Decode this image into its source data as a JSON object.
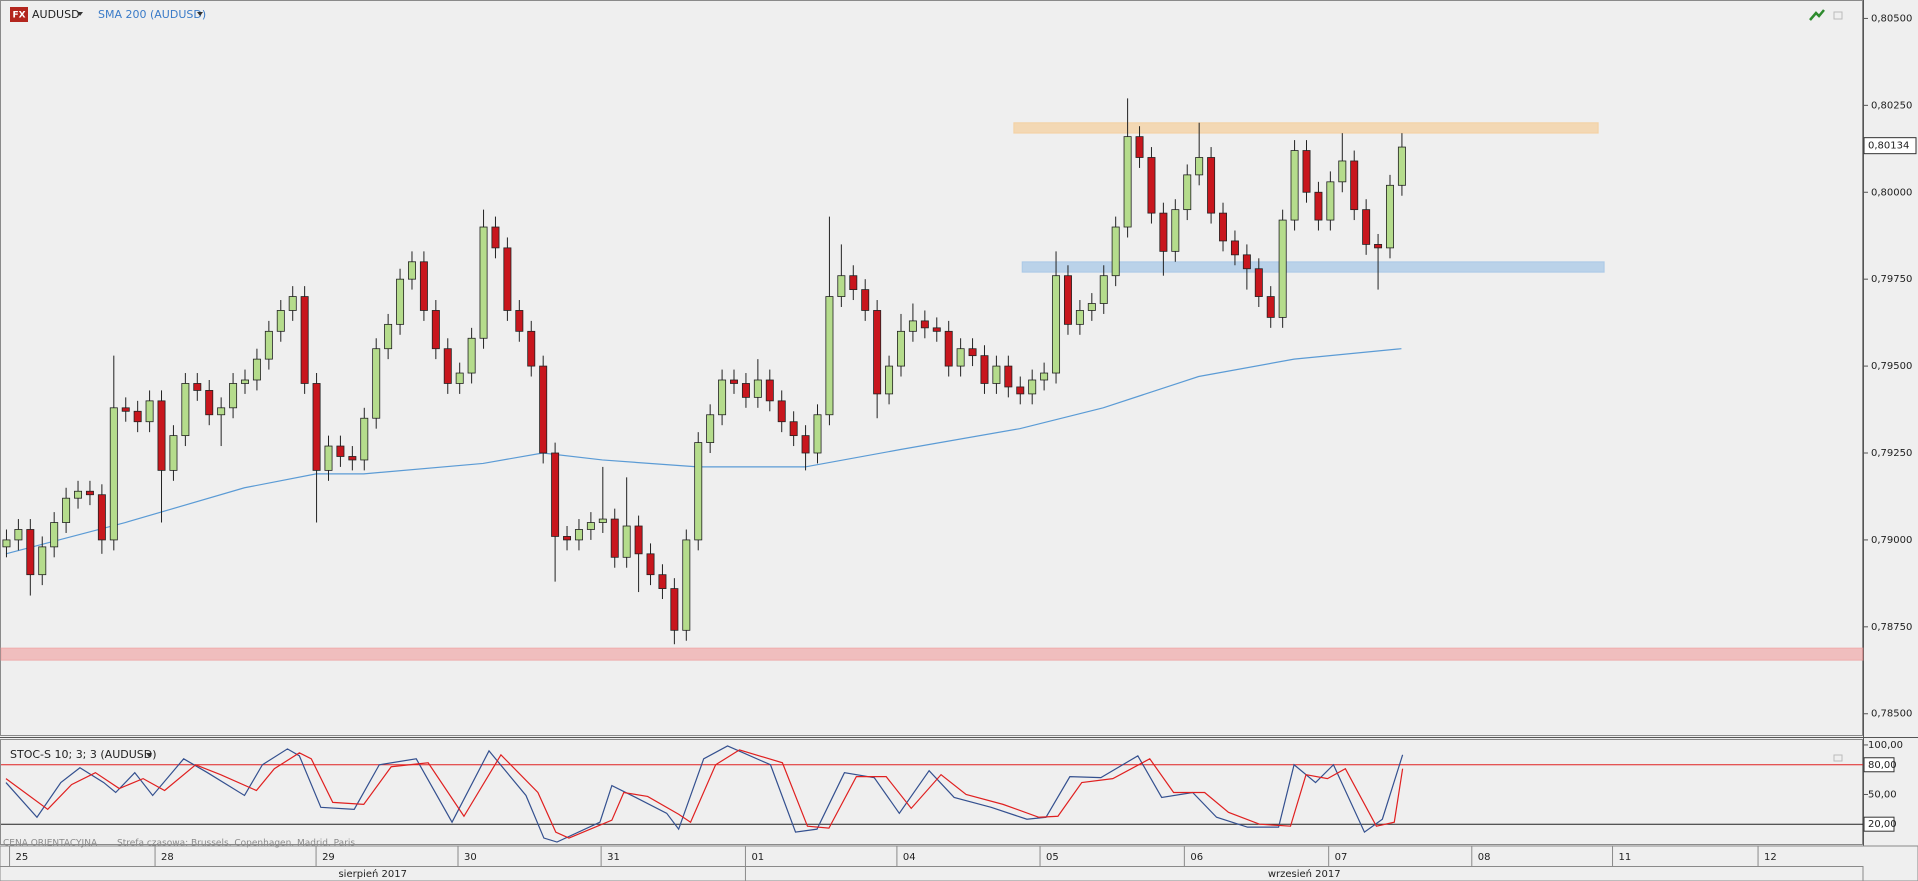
{
  "header": {
    "badge": "FX",
    "symbol": "AUDUSD",
    "indicator": "SMA 200 (AUDUSD)"
  },
  "chart_data": [
    {
      "type": "candlestick",
      "xlim": [
        -0.5,
        155.7
      ],
      "ylim": [
        0.78436,
        0.80553
      ],
      "yticks": [
        {
          "value": 0.805,
          "label": "0,80500"
        },
        {
          "value": 0.8025,
          "label": "0,80250"
        },
        {
          "value": 0.8,
          "label": "0,80000"
        },
        {
          "value": 0.7975,
          "label": "0,79750"
        },
        {
          "value": 0.795,
          "label": "0,79500"
        },
        {
          "value": 0.7925,
          "label": "0,79250"
        },
        {
          "value": 0.79,
          "label": "0,79000"
        },
        {
          "value": 0.7875,
          "label": "0,78750"
        },
        {
          "value": 0.785,
          "label": "0,78500"
        }
      ],
      "xticks": [
        {
          "value": 0.3,
          "label": "25"
        },
        {
          "value": 12.5,
          "label": "28"
        },
        {
          "value": 26,
          "label": "29"
        },
        {
          "value": 37.9,
          "label": "30"
        },
        {
          "value": 49.9,
          "label": "31"
        },
        {
          "value": 62,
          "label": "01"
        },
        {
          "value": 74.7,
          "label": "04"
        },
        {
          "value": 86.7,
          "label": "05"
        },
        {
          "value": 98.8,
          "label": "06"
        },
        {
          "value": 110.9,
          "label": "07"
        },
        {
          "value": 122.9,
          "label": "08"
        },
        {
          "value": 134.7,
          "label": "11"
        },
        {
          "value": 146.9,
          "label": "12"
        }
      ],
      "months": [
        {
          "label": "sierpień 2017",
          "start": -0.5,
          "end": 62
        },
        {
          "label": "wrzesień 2017",
          "start": 62,
          "end": 155.7
        }
      ],
      "up_color": "#b5dc8c",
      "down_color": "#c8161d",
      "candles": [
        [
          0.7898,
          0.7903,
          0.7895,
          0.79
        ],
        [
          0.79,
          0.7906,
          0.7897,
          0.7903
        ],
        [
          0.7903,
          0.7906,
          0.7884,
          0.789
        ],
        [
          0.789,
          0.7901,
          0.7887,
          0.7898
        ],
        [
          0.7898,
          0.7908,
          0.7895,
          0.7905
        ],
        [
          0.7905,
          0.7915,
          0.7902,
          0.7912
        ],
        [
          0.7912,
          0.7917,
          0.7909,
          0.7914
        ],
        [
          0.7914,
          0.7917,
          0.791,
          0.7913
        ],
        [
          0.7913,
          0.7916,
          0.7896,
          0.79
        ],
        [
          0.79,
          0.7953,
          0.7897,
          0.7938
        ],
        [
          0.7938,
          0.7941,
          0.7934,
          0.7937
        ],
        [
          0.7937,
          0.794,
          0.7931,
          0.7934
        ],
        [
          0.7934,
          0.7943,
          0.7931,
          0.794
        ],
        [
          0.794,
          0.7943,
          0.7905,
          0.792
        ],
        [
          0.792,
          0.7933,
          0.7917,
          0.793
        ],
        [
          0.793,
          0.7948,
          0.7927,
          0.7945
        ],
        [
          0.7945,
          0.7948,
          0.794,
          0.7943
        ],
        [
          0.7943,
          0.7946,
          0.7933,
          0.7936
        ],
        [
          0.7936,
          0.7941,
          0.7927,
          0.7938
        ],
        [
          0.7938,
          0.7948,
          0.7935,
          0.7945
        ],
        [
          0.7945,
          0.7949,
          0.7942,
          0.7946
        ],
        [
          0.7946,
          0.7955,
          0.7943,
          0.7952
        ],
        [
          0.7952,
          0.7963,
          0.7949,
          0.796
        ],
        [
          0.796,
          0.7969,
          0.7957,
          0.7966
        ],
        [
          0.7966,
          0.7973,
          0.7963,
          0.797
        ],
        [
          0.797,
          0.7973,
          0.7942,
          0.7945
        ],
        [
          0.7945,
          0.7948,
          0.7905,
          0.792
        ],
        [
          0.792,
          0.793,
          0.7917,
          0.7927
        ],
        [
          0.7927,
          0.793,
          0.7921,
          0.7924
        ],
        [
          0.7924,
          0.7927,
          0.792,
          0.7923
        ],
        [
          0.7923,
          0.7938,
          0.792,
          0.7935
        ],
        [
          0.7935,
          0.7958,
          0.7932,
          0.7955
        ],
        [
          0.7955,
          0.7965,
          0.7952,
          0.7962
        ],
        [
          0.7962,
          0.7978,
          0.7959,
          0.7975
        ],
        [
          0.7975,
          0.7983,
          0.7972,
          0.798
        ],
        [
          0.798,
          0.7983,
          0.7963,
          0.7966
        ],
        [
          0.7966,
          0.7969,
          0.7952,
          0.7955
        ],
        [
          0.7955,
          0.7958,
          0.7942,
          0.7945
        ],
        [
          0.7945,
          0.7951,
          0.7942,
          0.7948
        ],
        [
          0.7948,
          0.7961,
          0.7945,
          0.7958
        ],
        [
          0.7958,
          0.7995,
          0.7955,
          0.799
        ],
        [
          0.799,
          0.7993,
          0.7981,
          0.7984
        ],
        [
          0.7984,
          0.7987,
          0.7963,
          0.7966
        ],
        [
          0.7966,
          0.7969,
          0.7957,
          0.796
        ],
        [
          0.796,
          0.7963,
          0.7947,
          0.795
        ],
        [
          0.795,
          0.7953,
          0.7922,
          0.7925
        ],
        [
          0.7925,
          0.7928,
          0.7888,
          0.7901
        ],
        [
          0.7901,
          0.7904,
          0.7897,
          0.79
        ],
        [
          0.79,
          0.7906,
          0.7897,
          0.7903
        ],
        [
          0.7903,
          0.7908,
          0.79,
          0.7905
        ],
        [
          0.7905,
          0.7921,
          0.7902,
          0.7906
        ],
        [
          0.7906,
          0.7909,
          0.7892,
          0.7895
        ],
        [
          0.7895,
          0.7918,
          0.7892,
          0.7904
        ],
        [
          0.7904,
          0.7907,
          0.7885,
          0.7896
        ],
        [
          0.7896,
          0.7899,
          0.7887,
          0.789
        ],
        [
          0.789,
          0.7893,
          0.7883,
          0.7886
        ],
        [
          0.7886,
          0.7889,
          0.787,
          0.7874
        ],
        [
          0.7874,
          0.7903,
          0.7871,
          0.79
        ],
        [
          0.79,
          0.7931,
          0.7897,
          0.7928
        ],
        [
          0.7928,
          0.7939,
          0.7925,
          0.7936
        ],
        [
          0.7936,
          0.7949,
          0.7933,
          0.7946
        ],
        [
          0.7946,
          0.7949,
          0.7942,
          0.7945
        ],
        [
          0.7945,
          0.7948,
          0.7938,
          0.7941
        ],
        [
          0.7941,
          0.7952,
          0.7938,
          0.7946
        ],
        [
          0.7946,
          0.7949,
          0.7937,
          0.794
        ],
        [
          0.794,
          0.7943,
          0.7931,
          0.7934
        ],
        [
          0.7934,
          0.7937,
          0.7927,
          0.793
        ],
        [
          0.793,
          0.7933,
          0.792,
          0.7925
        ],
        [
          0.7925,
          0.7939,
          0.7922,
          0.7936
        ],
        [
          0.7936,
          0.7993,
          0.7933,
          0.797
        ],
        [
          0.797,
          0.7985,
          0.7967,
          0.7976
        ],
        [
          0.7976,
          0.7979,
          0.7969,
          0.7972
        ],
        [
          0.7972,
          0.7975,
          0.7963,
          0.7966
        ],
        [
          0.7966,
          0.7969,
          0.7935,
          0.7942
        ],
        [
          0.7942,
          0.7953,
          0.7939,
          0.795
        ],
        [
          0.795,
          0.7965,
          0.7947,
          0.796
        ],
        [
          0.796,
          0.7968,
          0.7957,
          0.7963
        ],
        [
          0.7963,
          0.7966,
          0.7958,
          0.7961
        ],
        [
          0.7961,
          0.7964,
          0.7957,
          0.796
        ],
        [
          0.796,
          0.7963,
          0.7947,
          0.795
        ],
        [
          0.795,
          0.7958,
          0.7947,
          0.7955
        ],
        [
          0.7955,
          0.7958,
          0.795,
          0.7953
        ],
        [
          0.7953,
          0.7956,
          0.7942,
          0.7945
        ],
        [
          0.7945,
          0.7953,
          0.7942,
          0.795
        ],
        [
          0.795,
          0.7953,
          0.7941,
          0.7944
        ],
        [
          0.7944,
          0.7947,
          0.7939,
          0.7942
        ],
        [
          0.7942,
          0.7949,
          0.7939,
          0.7946
        ],
        [
          0.7946,
          0.7951,
          0.7943,
          0.7948
        ],
        [
          0.7948,
          0.7983,
          0.7945,
          0.7976
        ],
        [
          0.7976,
          0.7979,
          0.7959,
          0.7962
        ],
        [
          0.7962,
          0.7969,
          0.7959,
          0.7966
        ],
        [
          0.7966,
          0.7971,
          0.7963,
          0.7968
        ],
        [
          0.7968,
          0.7979,
          0.7965,
          0.7976
        ],
        [
          0.7976,
          0.7993,
          0.7973,
          0.799
        ],
        [
          0.799,
          0.8027,
          0.7987,
          0.8016
        ],
        [
          0.8016,
          0.8019,
          0.8007,
          0.801
        ],
        [
          0.801,
          0.8013,
          0.7991,
          0.7994
        ],
        [
          0.7994,
          0.7997,
          0.7976,
          0.7983
        ],
        [
          0.7983,
          0.7998,
          0.798,
          0.7995
        ],
        [
          0.7995,
          0.8008,
          0.7992,
          0.8005
        ],
        [
          0.8005,
          0.802,
          0.8002,
          0.801
        ],
        [
          0.801,
          0.8013,
          0.7991,
          0.7994
        ],
        [
          0.7994,
          0.7997,
          0.7983,
          0.7986
        ],
        [
          0.7986,
          0.7989,
          0.7979,
          0.7982
        ],
        [
          0.7982,
          0.7985,
          0.7972,
          0.7978
        ],
        [
          0.7978,
          0.7981,
          0.7967,
          0.797
        ],
        [
          0.797,
          0.7973,
          0.7961,
          0.7964
        ],
        [
          0.7964,
          0.7995,
          0.7961,
          0.7992
        ],
        [
          0.7992,
          0.8015,
          0.7989,
          0.8012
        ],
        [
          0.8012,
          0.8015,
          0.7997,
          0.8
        ],
        [
          0.8,
          0.8003,
          0.7989,
          0.7992
        ],
        [
          0.7992,
          0.8006,
          0.7989,
          0.8003
        ],
        [
          0.8003,
          0.8017,
          0.8,
          0.8009
        ],
        [
          0.8009,
          0.8012,
          0.7992,
          0.7995
        ],
        [
          0.7995,
          0.7998,
          0.7982,
          0.7985
        ],
        [
          0.7985,
          0.7988,
          0.7972,
          0.7984
        ],
        [
          0.7984,
          0.8005,
          0.7981,
          0.8002
        ],
        [
          0.8002,
          0.8017,
          0.7999,
          0.8013
        ]
      ],
      "sma": {
        "color": "#5b9bd5",
        "x": [
          0,
          10,
          20,
          26,
          30,
          40,
          45,
          50,
          58,
          67,
          75,
          85,
          92,
          100,
          108,
          117
        ],
        "values": [
          0.7896,
          0.7905,
          0.7915,
          0.7919,
          0.7919,
          0.7922,
          0.7925,
          0.7923,
          0.7921,
          0.7921,
          0.7926,
          0.7932,
          0.7938,
          0.7947,
          0.7952,
          0.7955
        ]
      },
      "zones": [
        {
          "from": 0.8017,
          "to": 0.802,
          "x": [
            84.5,
            133.5
          ],
          "color": "rgba(245,200,140,0.6)"
        },
        {
          "from": 0.7977,
          "to": 0.798,
          "x": [
            85.2,
            134
          ],
          "color": "rgba(150,190,228,0.6)"
        },
        {
          "from": 0.78654,
          "to": 0.78689,
          "color": "rgba(240,150,150,0.55)"
        }
      ],
      "last_price": {
        "value": 0.80134,
        "label": "0,80134"
      }
    },
    {
      "type": "line",
      "title": "STOC-S 10; 3; 3 (AUDUSD)",
      "ylim": [
        0,
        106
      ],
      "yticks": [
        {
          "value": 100,
          "label": "100,00"
        },
        {
          "value": 80,
          "label": "80,00"
        },
        {
          "value": 50,
          "label": "50,00"
        },
        {
          "value": 20,
          "label": "20,00"
        }
      ],
      "levels": [
        {
          "value": 80,
          "color": "#e02020"
        },
        {
          "value": 20,
          "color": "#222222"
        }
      ],
      "series": [
        {
          "color": "#34508f",
          "x": [
            0,
            2.6,
            4.6,
            6.2,
            8.2,
            9.2,
            10.8,
            12.3,
            14.9,
            16.9,
            20,
            21.5,
            23.6,
            24.6,
            26.4,
            29.2,
            31.3,
            34.4,
            37.4,
            40.5,
            43.6,
            45.1,
            46.2,
            49.8,
            50.8,
            52.8,
            55.4,
            56.4,
            58.5,
            60.5,
            64.1,
            66.2,
            68,
            70.3,
            72.8,
            74.9,
            77.4,
            79.5,
            82.6,
            85.6,
            87.2,
            89.2,
            91.8,
            94.9,
            96.9,
            99.5,
            101.5,
            104.1,
            106.7,
            108,
            109.8,
            111.3,
            113.9,
            115.4,
            117.1
          ],
          "values": [
            62,
            27,
            62,
            77,
            62,
            52,
            72,
            49,
            86,
            72,
            49,
            80,
            96,
            89,
            37,
            35,
            80,
            86,
            22,
            94,
            49,
            6,
            2,
            22,
            59,
            47,
            31,
            15,
            86,
            99,
            80,
            12,
            15,
            72,
            67,
            31,
            74,
            47,
            37,
            25,
            27,
            68,
            67,
            89,
            47,
            52,
            27,
            17,
            17,
            80,
            62,
            80,
            12,
            25,
            90
          ]
        },
        {
          "color": "#e02020",
          "x": [
            0,
            3.5,
            5.5,
            7.5,
            9.5,
            11.5,
            13.3,
            15.9,
            18,
            21,
            22.5,
            24.6,
            25.6,
            27.4,
            30,
            32.3,
            35.4,
            38.4,
            41.5,
            44.6,
            46.1,
            47.2,
            50.8,
            51.8,
            53.8,
            56.4,
            57.4,
            59.5,
            61.5,
            65.1,
            67.2,
            69,
            71.3,
            73.8,
            75.9,
            78.4,
            80.5,
            83.6,
            86.6,
            88.2,
            90.2,
            92.8,
            95.9,
            97.9,
            100.5,
            102.5,
            105.1,
            107.7,
            109,
            110.8,
            112.3,
            114.9,
            116.4,
            117.1
          ],
          "values": [
            66,
            35,
            60,
            72,
            56,
            66,
            54,
            80,
            70,
            54,
            76,
            92,
            86,
            42,
            40,
            78,
            82,
            28,
            90,
            52,
            12,
            6,
            24,
            52,
            48,
            30,
            22,
            80,
            95,
            82,
            18,
            16,
            68,
            68,
            36,
            70,
            50,
            40,
            27,
            28,
            62,
            66,
            86,
            52,
            52,
            32,
            20,
            18,
            70,
            66,
            76,
            18,
            22,
            76
          ]
        }
      ]
    }
  ],
  "footer": {
    "note": "CENA ORIENTACYJNA",
    "timezone": "Strefa czasowa: Brussels, Copenhagen, Madrid, Paris"
  }
}
